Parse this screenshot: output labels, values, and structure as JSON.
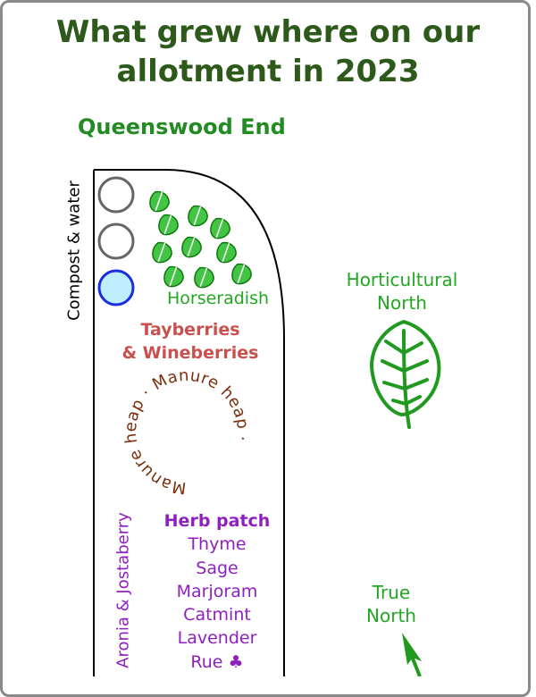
{
  "title": {
    "line1": "What grew where on our",
    "line2": "allotment in 2023"
  },
  "end_label": "Queenswood End",
  "compost_label": "Compost & water",
  "horseradish_label": "Horseradish",
  "tayberries": {
    "line1": "Tayberries",
    "line2": "& Wineberries"
  },
  "manure_label": "Manure heap · Manure heap ·",
  "aronia_label": "Aronia & Jostaberry",
  "herb_patch": {
    "heading": "Herb patch",
    "items": [
      "Thyme",
      "Sage",
      "Marjoram",
      "Catmint",
      "Lavender",
      "Rue"
    ]
  },
  "herb_icon": "club-suit-icon",
  "horticultural_north": {
    "line1": "Horticultural",
    "line2": "North"
  },
  "true_north": {
    "line1": "True",
    "line2": "North"
  },
  "colors": {
    "title": "#2d5a1b",
    "green": "#22a822",
    "red": "#c9504c",
    "purple": "#8f1fbf",
    "brown": "#7a2e0c",
    "water": "#bfeeff",
    "water_border": "#1a2ee0"
  }
}
